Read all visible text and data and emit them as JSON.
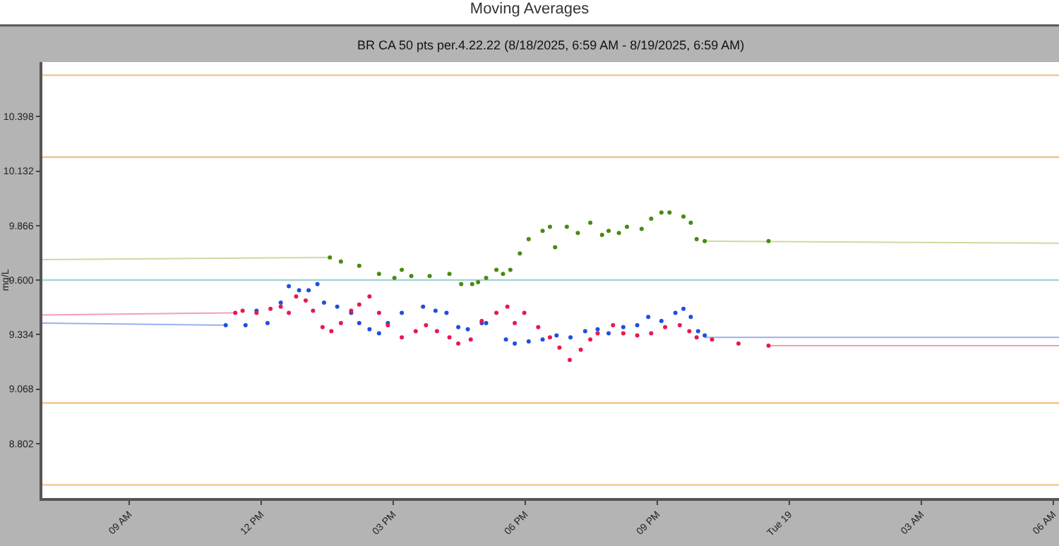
{
  "chart_data": {
    "type": "scatter",
    "title": "Moving Averages",
    "subtitle": "BR CA 50 pts per.4.22.22 (8/18/2025, 6:59 AM - 8/19/2025, 6:59 AM)",
    "ylabel": "mg/L",
    "xlim": [
      "2025-08-18T07:02",
      "2025-08-19T06:08"
    ],
    "xticks": [
      {
        "value": "2025-08-18T09:00",
        "label": "09 AM"
      },
      {
        "value": "2025-08-18T12:00",
        "label": "12 PM"
      },
      {
        "value": "2025-08-18T15:00",
        "label": "03 PM"
      },
      {
        "value": "2025-08-18T18:00",
        "label": "06 PM"
      },
      {
        "value": "2025-08-18T21:00",
        "label": "09 PM"
      },
      {
        "value": "2025-08-19T00:00",
        "label": "Tue 19"
      },
      {
        "value": "2025-08-19T03:00",
        "label": "03 AM"
      },
      {
        "value": "2025-08-19T06:00",
        "label": "06 AM"
      }
    ],
    "ylim": [
      8.536,
      10.664
    ],
    "yticks": [
      {
        "value": 8.802,
        "label": "8.802"
      },
      {
        "value": 9.068,
        "label": "9.068"
      },
      {
        "value": 9.334,
        "label": "9.334"
      },
      {
        "value": 9.6,
        "label": "9.600"
      },
      {
        "value": 9.866,
        "label": "9.866"
      },
      {
        "value": 10.132,
        "label": "10.132"
      },
      {
        "value": 10.398,
        "label": "10.398"
      }
    ],
    "marker": "circle",
    "ref_lines": [
      {
        "axis": "y",
        "value": 10.6,
        "color": "#f2c48c"
      },
      {
        "axis": "y",
        "value": 10.2,
        "color": "#f2c48c"
      },
      {
        "axis": "y",
        "value": 9.6,
        "color": "#a9d3d6"
      },
      {
        "axis": "y",
        "value": 9.0,
        "color": "#f2c48c"
      },
      {
        "axis": "y",
        "value": 8.6,
        "color": "#f2c48c"
      }
    ],
    "series": [
      {
        "type": "line",
        "marker": "none",
        "color": "#9ab0f0",
        "x": [
          "2025-08-18T07:02",
          "2025-08-18T11:12",
          "2025-08-18T16:00",
          "2025-08-18T22:05",
          "2025-08-19T06:08"
        ],
        "values": [
          9.39,
          9.38,
          null,
          9.32,
          9.32
        ]
      },
      {
        "type": "line",
        "marker": "none",
        "color": "#f2a0b8",
        "x": [
          "2025-08-18T07:02",
          "2025-08-18T11:25",
          "2025-08-18T16:00",
          "2025-08-18T23:32",
          "2025-08-19T06:08"
        ],
        "values": [
          9.43,
          9.44,
          null,
          9.28,
          9.28
        ]
      },
      {
        "type": "line",
        "marker": "none",
        "color": "#cfd9a0",
        "x": [
          "2025-08-18T07:02",
          "2025-08-18T13:34",
          "2025-08-18T16:00",
          "2025-08-18T22:05",
          "2025-08-19T06:08"
        ],
        "values": [
          9.7,
          9.71,
          null,
          9.79,
          9.78
        ]
      },
      {
        "color": "#1f4fe0",
        "x": [
          "2025-08-18T11:12",
          "2025-08-18T11:39",
          "2025-08-18T11:54",
          "2025-08-18T12:09",
          "2025-08-18T12:27",
          "2025-08-18T12:38",
          "2025-08-18T12:52",
          "2025-08-18T13:05",
          "2025-08-18T13:17",
          "2025-08-18T13:26",
          "2025-08-18T13:44",
          "2025-08-18T14:03",
          "2025-08-18T14:14",
          "2025-08-18T14:28",
          "2025-08-18T14:41",
          "2025-08-18T14:53",
          "2025-08-18T15:12",
          "2025-08-18T15:41",
          "2025-08-18T15:58",
          "2025-08-18T16:13",
          "2025-08-18T16:29",
          "2025-08-18T16:42",
          "2025-08-18T17:01",
          "2025-08-18T17:07",
          "2025-08-18T17:34",
          "2025-08-18T17:46",
          "2025-08-18T18:05",
          "2025-08-18T18:24",
          "2025-08-18T18:43",
          "2025-08-18T19:02",
          "2025-08-18T19:22",
          "2025-08-18T19:39",
          "2025-08-18T19:54",
          "2025-08-18T20:14",
          "2025-08-18T20:33",
          "2025-08-18T20:48",
          "2025-08-18T21:06",
          "2025-08-18T21:25",
          "2025-08-18T21:36",
          "2025-08-18T21:46",
          "2025-08-18T21:56",
          "2025-08-18T22:05"
        ],
        "values": [
          9.38,
          9.38,
          9.45,
          9.39,
          9.49,
          9.57,
          9.55,
          9.55,
          9.58,
          9.49,
          9.47,
          9.44,
          9.39,
          9.36,
          9.34,
          9.39,
          9.44,
          9.47,
          9.45,
          9.44,
          9.37,
          9.36,
          9.39,
          9.39,
          9.31,
          9.29,
          9.3,
          9.31,
          9.33,
          9.32,
          9.35,
          9.36,
          9.34,
          9.37,
          9.38,
          9.42,
          9.4,
          9.44,
          9.46,
          9.42,
          9.35,
          9.33
        ]
      },
      {
        "color": "#e8194f",
        "x": [
          "2025-08-18T11:25",
          "2025-08-18T11:35",
          "2025-08-18T11:54",
          "2025-08-18T12:13",
          "2025-08-18T12:27",
          "2025-08-18T12:38",
          "2025-08-18T12:48",
          "2025-08-18T13:01",
          "2025-08-18T13:11",
          "2025-08-18T13:24",
          "2025-08-18T13:36",
          "2025-08-18T13:49",
          "2025-08-18T14:03",
          "2025-08-18T14:14",
          "2025-08-18T14:28",
          "2025-08-18T14:41",
          "2025-08-18T14:53",
          "2025-08-18T15:12",
          "2025-08-18T15:31",
          "2025-08-18T15:45",
          "2025-08-18T16:00",
          "2025-08-18T16:17",
          "2025-08-18T16:29",
          "2025-08-18T16:46",
          "2025-08-18T17:01",
          "2025-08-18T17:21",
          "2025-08-18T17:36",
          "2025-08-18T17:46",
          "2025-08-18T17:59",
          "2025-08-18T18:18",
          "2025-08-18T18:34",
          "2025-08-18T18:47",
          "2025-08-18T19:01",
          "2025-08-18T19:16",
          "2025-08-18T19:29",
          "2025-08-18T19:39",
          "2025-08-18T20:00",
          "2025-08-18T20:14",
          "2025-08-18T20:33",
          "2025-08-18T20:52",
          "2025-08-18T21:11",
          "2025-08-18T21:31",
          "2025-08-18T21:44",
          "2025-08-18T21:54",
          "2025-08-18T22:15",
          "2025-08-18T22:51",
          "2025-08-18T23:32"
        ],
        "values": [
          9.44,
          9.45,
          9.44,
          9.46,
          9.47,
          9.44,
          9.52,
          9.5,
          9.45,
          9.37,
          9.35,
          9.39,
          9.45,
          9.48,
          9.52,
          9.44,
          9.38,
          9.32,
          9.35,
          9.38,
          9.35,
          9.32,
          9.29,
          9.31,
          9.4,
          9.44,
          9.47,
          9.39,
          9.44,
          9.37,
          9.32,
          9.27,
          9.21,
          9.26,
          9.31,
          9.34,
          9.38,
          9.34,
          9.33,
          9.34,
          9.37,
          9.38,
          9.35,
          9.32,
          9.31,
          9.29,
          9.28
        ]
      },
      {
        "color": "#4a8a10",
        "x": [
          "2025-08-18T13:34",
          "2025-08-18T13:49",
          "2025-08-18T14:14",
          "2025-08-18T14:41",
          "2025-08-18T15:02",
          "2025-08-18T15:12",
          "2025-08-18T15:25",
          "2025-08-18T15:50",
          "2025-08-18T16:17",
          "2025-08-18T16:33",
          "2025-08-18T16:48",
          "2025-08-18T16:56",
          "2025-08-18T17:07",
          "2025-08-18T17:21",
          "2025-08-18T17:30",
          "2025-08-18T17:40",
          "2025-08-18T17:53",
          "2025-08-18T18:05",
          "2025-08-18T18:24",
          "2025-08-18T18:34",
          "2025-08-18T18:41",
          "2025-08-18T18:57",
          "2025-08-18T19:12",
          "2025-08-18T19:29",
          "2025-08-18T19:45",
          "2025-08-18T19:54",
          "2025-08-18T20:08",
          "2025-08-18T20:19",
          "2025-08-18T20:39",
          "2025-08-18T20:52",
          "2025-08-18T21:06",
          "2025-08-18T21:17",
          "2025-08-18T21:36",
          "2025-08-18T21:46",
          "2025-08-18T21:54",
          "2025-08-18T22:05",
          "2025-08-18T23:32"
        ],
        "values": [
          9.71,
          9.69,
          9.67,
          9.63,
          9.61,
          9.65,
          9.62,
          9.62,
          9.63,
          9.58,
          9.58,
          9.59,
          9.61,
          9.65,
          9.63,
          9.65,
          9.73,
          9.8,
          9.84,
          9.86,
          9.76,
          9.86,
          9.83,
          9.88,
          9.82,
          9.84,
          9.83,
          9.86,
          9.85,
          9.9,
          9.93,
          9.93,
          9.91,
          9.88,
          9.8,
          9.79,
          9.79
        ]
      }
    ]
  }
}
